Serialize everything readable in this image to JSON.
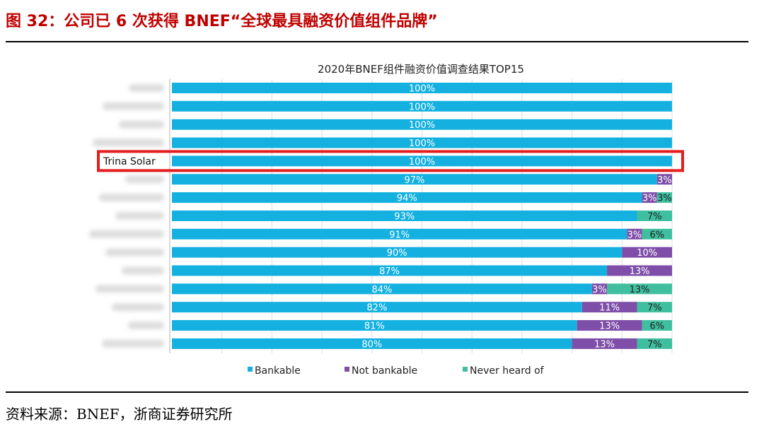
{
  "figure_title": "图 32：公司已 6 次获得 BNEF“全球最具融资价值组件品牌”",
  "source_note": "资料来源：BNEF，浙商证券研究所",
  "colors": {
    "bankable": "#14b1e0",
    "not_bankable": "#7e4ea8",
    "never_heard": "#3fbf9f",
    "highlight": "#e41e1e"
  },
  "chart_data": {
    "type": "bar",
    "orientation": "horizontal",
    "stacked": true,
    "title": "2020年BNEF组件融资价值调查结果TOP15",
    "categories": [
      "",
      "",
      "",
      "",
      "Trina Solar",
      "",
      "",
      "",
      "",
      "",
      "",
      "",
      "",
      "",
      ""
    ],
    "highlighted_category": "Trina Solar",
    "series": [
      {
        "name": "Bankable",
        "values": [
          100,
          100,
          100,
          100,
          100,
          97,
          94,
          93,
          91,
          90,
          87,
          84,
          82,
          81,
          80
        ]
      },
      {
        "name": "Not bankable",
        "values": [
          0,
          0,
          0,
          0,
          0,
          3,
          3,
          0,
          3,
          10,
          13,
          3,
          11,
          13,
          13
        ]
      },
      {
        "name": "Never heard of",
        "values": [
          0,
          0,
          0,
          0,
          0,
          0,
          3,
          7,
          6,
          0,
          0,
          13,
          7,
          6,
          7
        ]
      }
    ],
    "legend": [
      "Bankable",
      "Not bankable",
      "Never heard of"
    ],
    "legend_position": "bottom",
    "xlim": [
      0,
      100
    ],
    "unit": "%"
  }
}
